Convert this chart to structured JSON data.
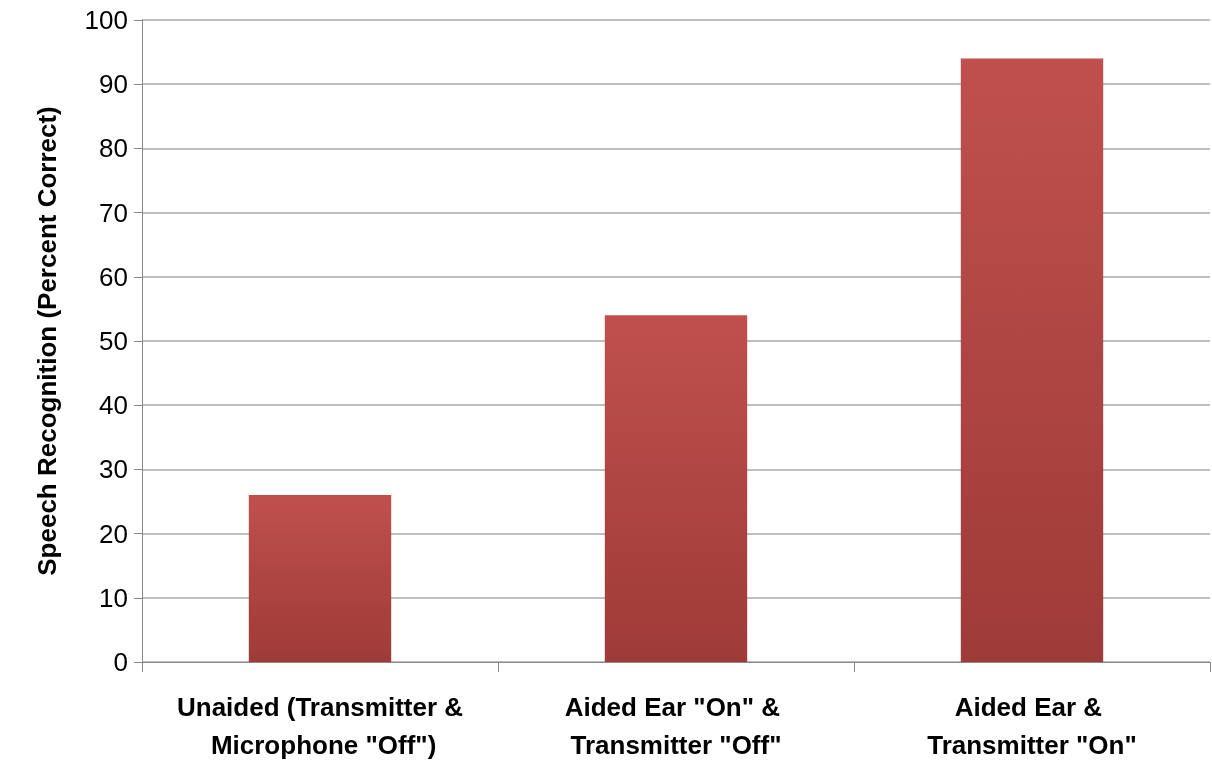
{
  "chart_data": {
    "type": "bar",
    "ylabel": "Speech Recognition (Percent Correct)",
    "categories": [
      "Unaided (Transmitter & Microphone \"Off\")",
      "Aided Ear \"On\" & Transmitter \"Off\"",
      "Aided Ear & Transmitter \"On\""
    ],
    "values": [
      26,
      54,
      94
    ],
    "color": "#c0504d",
    "ylim": [
      0,
      100
    ],
    "yticks": [
      0,
      10,
      20,
      30,
      40,
      50,
      60,
      70,
      80,
      90,
      100
    ],
    "grid": "y"
  }
}
